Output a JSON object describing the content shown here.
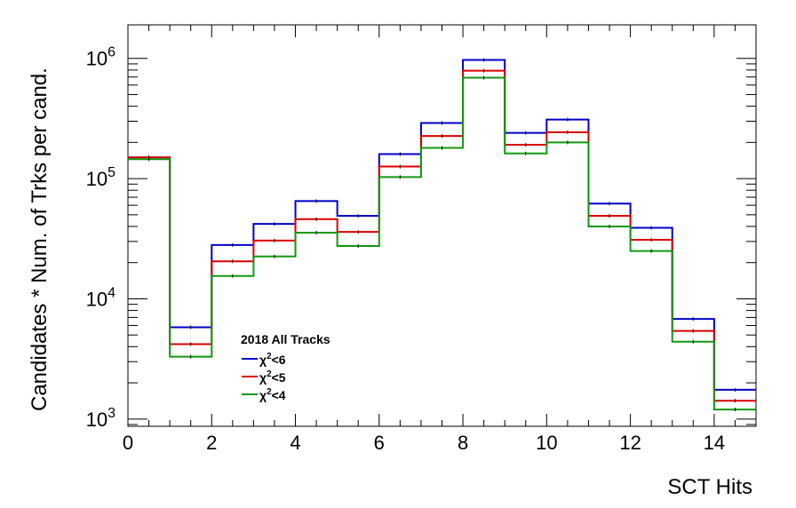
{
  "chart_data": {
    "type": "step-histogram",
    "xlabel": "SCT Hits",
    "ylabel": "Candidates * Num. of Trks per cand.",
    "yscale": "log",
    "xlim": [
      0,
      15
    ],
    "ylim": [
      870,
      1900000
    ],
    "x_ticks": [
      "0",
      "2",
      "4",
      "6",
      "8",
      "10",
      "12",
      "14"
    ],
    "y_tick_base": "10",
    "y_tick_exponents": [
      "3",
      "4",
      "5",
      "6"
    ],
    "bin_edges": [
      0,
      1,
      2,
      3,
      4,
      5,
      6,
      7,
      8,
      9,
      10,
      11,
      12,
      13,
      14,
      15
    ],
    "legend": {
      "title": "2018 All Tracks",
      "placement": "bottom-left"
    },
    "series": [
      {
        "name_base": "χ",
        "name_sup": "2",
        "name_rest": "<6",
        "color": "#0000cc",
        "values": [
          150000,
          5800,
          28000,
          42000,
          65000,
          49000,
          160000,
          290000,
          970000,
          240000,
          310000,
          62000,
          39000,
          6800,
          1750
        ]
      },
      {
        "name_base": "χ",
        "name_sup": "2",
        "name_rest": "<5",
        "color": "#dd0000",
        "values": [
          150000,
          4200,
          20500,
          30500,
          46000,
          36000,
          126000,
          226000,
          790000,
          191000,
          243000,
          49000,
          31000,
          5400,
          1420
        ]
      },
      {
        "name_base": "χ",
        "name_sup": "2",
        "name_rest": "<4",
        "color": "#119911",
        "values": [
          145000,
          3300,
          15500,
          22500,
          35500,
          27500,
          103000,
          180000,
          690000,
          162000,
          200000,
          40000,
          25000,
          4400,
          1200
        ]
      }
    ]
  }
}
